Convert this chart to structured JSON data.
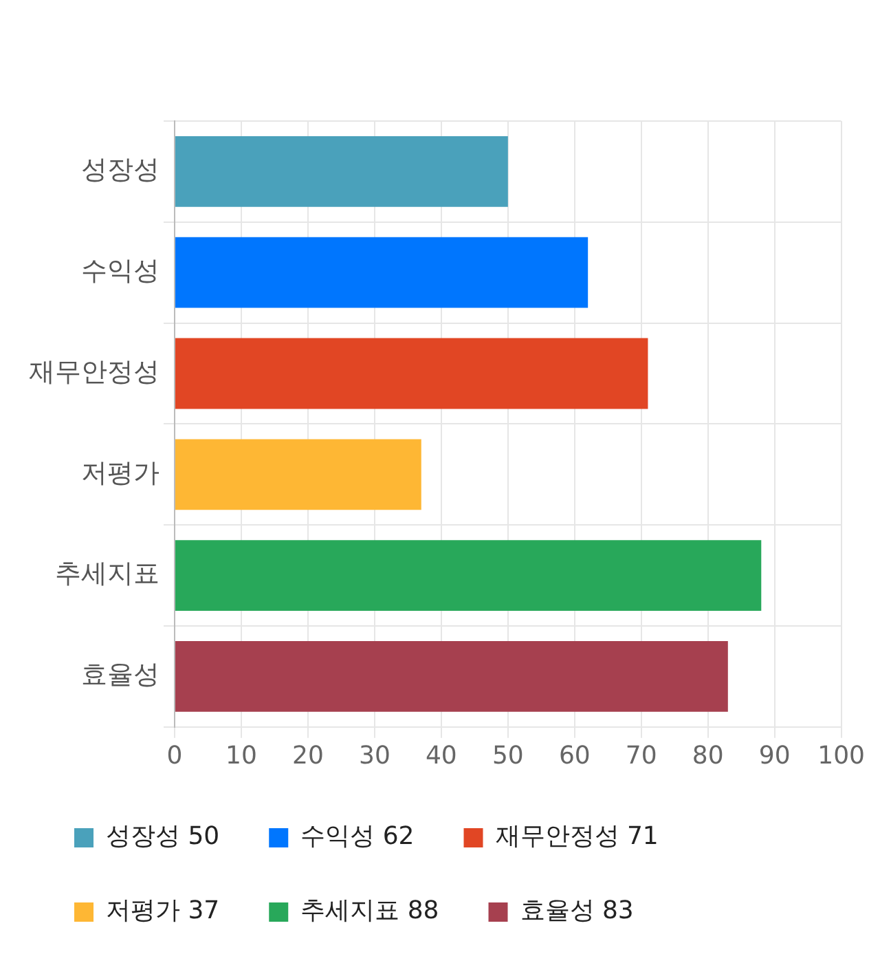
{
  "chart_data": {
    "type": "bar",
    "orientation": "horizontal",
    "categories": [
      "성장성",
      "수익성",
      "재무안정성",
      "저평가",
      "추세지표",
      "효율성"
    ],
    "series": [
      {
        "name": "성장성 50",
        "color": "#4aa1bb",
        "values": [
          50,
          null,
          null,
          null,
          null,
          null
        ]
      },
      {
        "name": "수익성 62",
        "color": "#0076fe",
        "values": [
          null,
          62,
          null,
          null,
          null,
          null
        ]
      },
      {
        "name": "재무안정성 71",
        "color": "#e14624",
        "values": [
          null,
          null,
          71,
          null,
          null,
          null
        ]
      },
      {
        "name": "저평가 37",
        "color": "#feb734",
        "values": [
          null,
          null,
          null,
          37,
          null,
          null
        ]
      },
      {
        "name": "추세지표 88",
        "color": "#28a85a",
        "values": [
          null,
          null,
          null,
          null,
          88,
          null
        ]
      },
      {
        "name": "효율성 83",
        "color": "#a6404f",
        "values": [
          null,
          null,
          null,
          null,
          null,
          83
        ]
      }
    ],
    "xlim": [
      0,
      100
    ],
    "xticks": [
      0,
      10,
      20,
      30,
      40,
      50,
      60,
      70,
      80,
      90,
      100
    ],
    "grid": true,
    "legend": "bottom"
  }
}
